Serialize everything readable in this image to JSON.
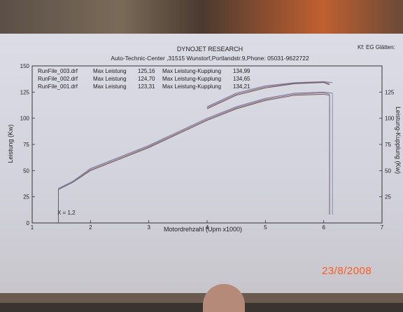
{
  "header": {
    "title": "DYNOJET RESEARCH",
    "address": "Auto-Technic-Center ,31515 Wunstorf,Portlandstr.9,Phone: 05031-9622722",
    "corner": "Kf: EG  Glätten:"
  },
  "runs": [
    {
      "file": "RunFile_003.drf",
      "max_label": "Max Leistung",
      "max": "125,16",
      "clutch_label": "Max Leistung-Kupplung",
      "clutch": "134,99"
    },
    {
      "file": "RunFile_002.drf",
      "max_label": "Max Leistung",
      "max": "124,70",
      "clutch_label": "Max Leistung-Kupplung",
      "clutch": "134,65"
    },
    {
      "file": "RunFile_001.drf",
      "max_label": "Max Leistung",
      "max": "123,31",
      "clutch_label": "Max Leistung-Kupplung",
      "clutch": "134,21"
    }
  ],
  "marker": "X = 1,2",
  "photo_date": "23/8/2008",
  "colors": {
    "run3": "#6a7fb0",
    "run2": "#b06a70",
    "run1": "#5a5a5a"
  },
  "chart_data": {
    "type": "line",
    "xlabel": "Motordrehzahl (Upm x1000)",
    "ylabel": "Leistung (Kw)",
    "y2label": "Leistung-Kupplung (Kw)",
    "xlim": [
      1,
      7
    ],
    "ylim": [
      0,
      150
    ],
    "x_ticks": [
      "1",
      "2",
      "3",
      "4",
      "5",
      "6",
      "7"
    ],
    "y_ticks": [
      "0",
      "25",
      "50",
      "75",
      "100",
      "125",
      "150"
    ],
    "y2_ticks": [
      "25",
      "50",
      "75",
      "100",
      "125"
    ],
    "series": [
      {
        "name": "RunFile_003.drf",
        "x": [
          1.45,
          1.7,
          2.0,
          2.5,
          3.0,
          3.5,
          4.0,
          4.5,
          5.0,
          5.5,
          6.0,
          6.15
        ],
        "y": [
          33,
          40,
          52,
          63,
          74,
          87,
          100,
          111,
          119,
          124,
          125,
          124
        ]
      },
      {
        "name": "RunFile_002.drf",
        "x": [
          1.45,
          1.7,
          2.0,
          2.5,
          3.0,
          3.5,
          4.0,
          4.5,
          5.0,
          5.5,
          6.0,
          6.1
        ],
        "y": [
          32,
          39,
          51,
          62,
          73,
          86,
          99,
          110,
          118,
          123,
          124.5,
          123
        ]
      },
      {
        "name": "RunFile_001.drf",
        "x": [
          1.45,
          1.7,
          2.0,
          2.5,
          3.0,
          3.5,
          4.0,
          4.5,
          5.0,
          5.5,
          6.0,
          6.1
        ],
        "y": [
          32,
          39,
          50,
          61,
          72,
          85,
          98,
          109,
          117,
          122,
          123,
          122
        ]
      }
    ],
    "series_clutch": [
      {
        "name": "RunFile_003.drf",
        "x": [
          4.0,
          4.5,
          5.0,
          5.5,
          6.0,
          6.15
        ],
        "y": [
          111,
          124,
          131,
          134,
          135,
          134
        ]
      },
      {
        "name": "RunFile_002.drf",
        "x": [
          4.0,
          4.5,
          5.0,
          5.5,
          6.0,
          6.1
        ],
        "y": [
          110,
          123,
          130,
          133.5,
          134.6,
          133
        ]
      },
      {
        "name": "RunFile_001.drf",
        "x": [
          4.0,
          4.5,
          5.0,
          5.5,
          6.0,
          6.1
        ],
        "y": [
          109,
          122,
          129,
          133,
          134.2,
          132
        ]
      }
    ],
    "grid": false
  }
}
